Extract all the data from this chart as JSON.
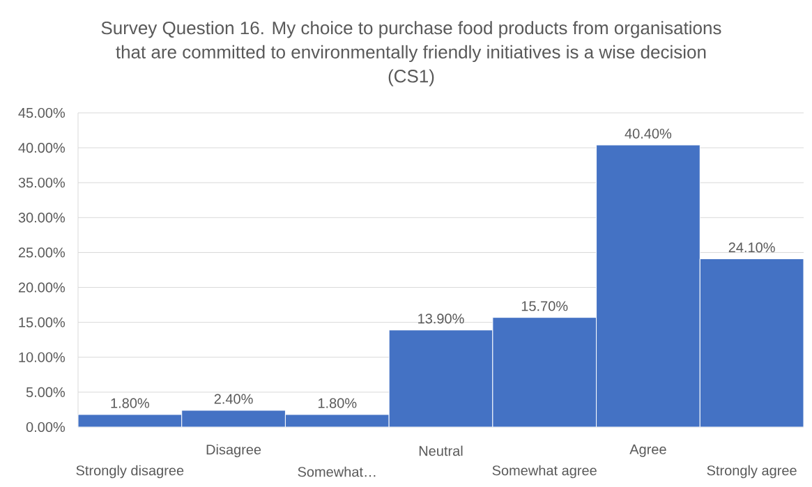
{
  "chart_data": {
    "type": "bar",
    "title": "Survey Question 16. My choice to purchase food products from organisations that are committed to environmentally friendly initiatives is a wise decision (CS1)",
    "categories": [
      "Strongly disagree",
      "Disagree",
      "Somewhat…",
      "Neutral",
      "Somewhat agree",
      "Agree",
      "Strongly agree"
    ],
    "values": [
      1.8,
      2.4,
      1.8,
      13.9,
      15.7,
      40.4,
      24.1
    ],
    "value_labels": [
      "1.80%",
      "2.40%",
      "1.80%",
      "13.90%",
      "15.70%",
      "40.40%",
      "24.10%"
    ],
    "color": "#4472c4",
    "ylim": [
      0,
      45
    ],
    "yticks": [
      {
        "value": 0,
        "label": "0.00%"
      },
      {
        "value": 5,
        "label": "5.00%"
      },
      {
        "value": 10,
        "label": "10.00%"
      },
      {
        "value": 15,
        "label": "15.00%"
      },
      {
        "value": 20,
        "label": "20.00%"
      },
      {
        "value": 25,
        "label": "25.00%"
      },
      {
        "value": 30,
        "label": "30.00%"
      },
      {
        "value": 35,
        "label": "35.00%"
      },
      {
        "value": 40,
        "label": "40.00%"
      },
      {
        "value": 45,
        "label": "45.00%"
      }
    ],
    "grid": "y"
  }
}
